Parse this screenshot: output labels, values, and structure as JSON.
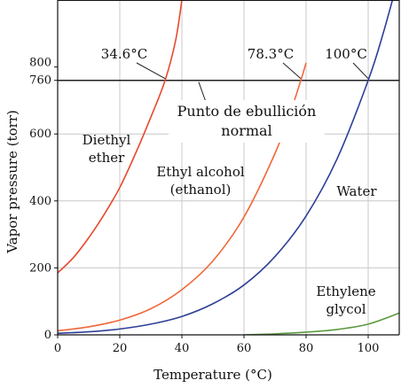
{
  "chart_data": {
    "type": "line",
    "xlabel": "Temperature (°C)",
    "ylabel": "Vapor pressure (torr)",
    "xlim": [
      0,
      110
    ],
    "ylim": [
      0,
      1000
    ],
    "x_ticks": [
      "0",
      "20",
      "40",
      "60",
      "80",
      "100"
    ],
    "y_ticks": [
      "0",
      "200",
      "400",
      "600",
      "760",
      "800"
    ],
    "grid": true,
    "reference_line": {
      "y": 760
    },
    "callout_lines": [
      "Punto de ebullición",
      "normal"
    ],
    "boiling_points": [
      {
        "label": "34.6°C",
        "x": 34.6
      },
      {
        "label": "78.3°C",
        "x": 78.3
      },
      {
        "label": "100°C",
        "x": 100
      }
    ],
    "series": [
      {
        "name": "Diethyl ether",
        "label_lines": [
          "Diethyl",
          "ether"
        ],
        "color": "#e8492d",
        "x": [
          0,
          5,
          10,
          15,
          20,
          25,
          30,
          34.6,
          38,
          40
        ],
        "y": [
          185,
          230,
          290,
          360,
          440,
          540,
          650,
          760,
          880,
          1000
        ]
      },
      {
        "name": "Ethyl alcohol (ethanol)",
        "label_lines": [
          "Ethyl alcohol",
          "(ethanol)"
        ],
        "color": "#f0683a",
        "x": [
          0,
          10,
          20,
          30,
          40,
          50,
          60,
          70,
          75,
          78.3,
          80
        ],
        "y": [
          12,
          24,
          44,
          78,
          135,
          221,
          352,
          542,
          666,
          760,
          812
        ]
      },
      {
        "name": "Water",
        "label_lines": [
          "Water"
        ],
        "color": "#2e3f96",
        "x": [
          0,
          10,
          20,
          30,
          40,
          50,
          60,
          70,
          80,
          90,
          100,
          105,
          110
        ],
        "y": [
          4.6,
          9,
          17.5,
          32,
          55,
          93,
          149,
          234,
          355,
          526,
          760,
          906,
          1075
        ]
      },
      {
        "name": "Ethylene glycol",
        "label_lines": [
          "Ethylene",
          "glycol"
        ],
        "color": "#5b9a3f",
        "x": [
          60,
          70,
          80,
          90,
          100,
          110
        ],
        "y": [
          0,
          3,
          8,
          16,
          32,
          65
        ]
      }
    ]
  }
}
